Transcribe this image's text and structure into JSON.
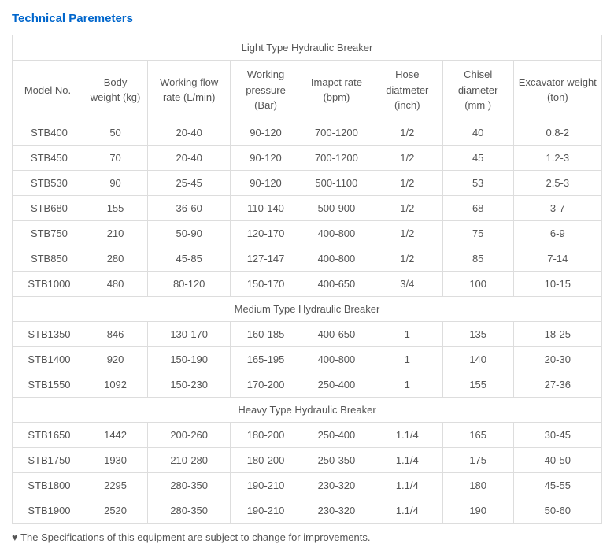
{
  "title": "Technical Paremeters",
  "columns": [
    "Model No.",
    "Body weight (kg)",
    "Working flow rate (L/min)",
    "Working pressure (Bar)",
    "Imapct rate (bpm)",
    "Hose diatmeter (inch)",
    "Chisel diameter (mm )",
    "Excavator weight (ton)"
  ],
  "groups": [
    {
      "label": "Light Type Hydraulic Breaker",
      "rows": [
        [
          "STB400",
          "50",
          "20-40",
          "90-120",
          "700-1200",
          "1/2",
          "40",
          "0.8-2"
        ],
        [
          "STB450",
          "70",
          "20-40",
          "90-120",
          "700-1200",
          "1/2",
          "45",
          "1.2-3"
        ],
        [
          "STB530",
          "90",
          "25-45",
          "90-120",
          "500-1100",
          "1/2",
          "53",
          "2.5-3"
        ],
        [
          "STB680",
          "155",
          "36-60",
          "110-140",
          "500-900",
          "1/2",
          "68",
          "3-7"
        ],
        [
          "STB750",
          "210",
          "50-90",
          "120-170",
          "400-800",
          "1/2",
          "75",
          "6-9"
        ],
        [
          "STB850",
          "280",
          "45-85",
          "127-147",
          "400-800",
          "1/2",
          "85",
          "7-14"
        ],
        [
          "STB1000",
          "480",
          "80-120",
          "150-170",
          "400-650",
          "3/4",
          "100",
          "10-15"
        ]
      ]
    },
    {
      "label": "Medium Type Hydraulic Breaker",
      "rows": [
        [
          "STB1350",
          "846",
          "130-170",
          "160-185",
          "400-650",
          "1",
          "135",
          "18-25"
        ],
        [
          "STB1400",
          "920",
          "150-190",
          "165-195",
          "400-800",
          "1",
          "140",
          "20-30"
        ],
        [
          "STB1550",
          "1092",
          "150-230",
          "170-200",
          "250-400",
          "1",
          "155",
          "27-36"
        ]
      ]
    },
    {
      "label": "Heavy Type Hydraulic Breaker",
      "rows": [
        [
          "STB1650",
          "1442",
          "200-260",
          "180-200",
          "250-400",
          "1.1/4",
          "165",
          "30-45"
        ],
        [
          "STB1750",
          "1930",
          "210-280",
          "180-200",
          "250-350",
          "1.1/4",
          "175",
          "40-50"
        ],
        [
          "STB1800",
          "2295",
          "280-350",
          "190-210",
          "230-320",
          "1.1/4",
          "180",
          "45-55"
        ],
        [
          "STB1900",
          "2520",
          "280-350",
          "190-210",
          "230-320",
          "1.1/4",
          "190",
          "50-60"
        ]
      ]
    }
  ],
  "footnote": "♥ The Specifications of this equipment are subject to change for improvements.",
  "style": {
    "title_color": "#0066cc",
    "border_color": "#dddddd",
    "text_color": "#555555",
    "background": "#ffffff",
    "col_widths_pct": [
      12,
      11,
      14,
      12,
      12,
      12,
      12,
      15
    ]
  }
}
